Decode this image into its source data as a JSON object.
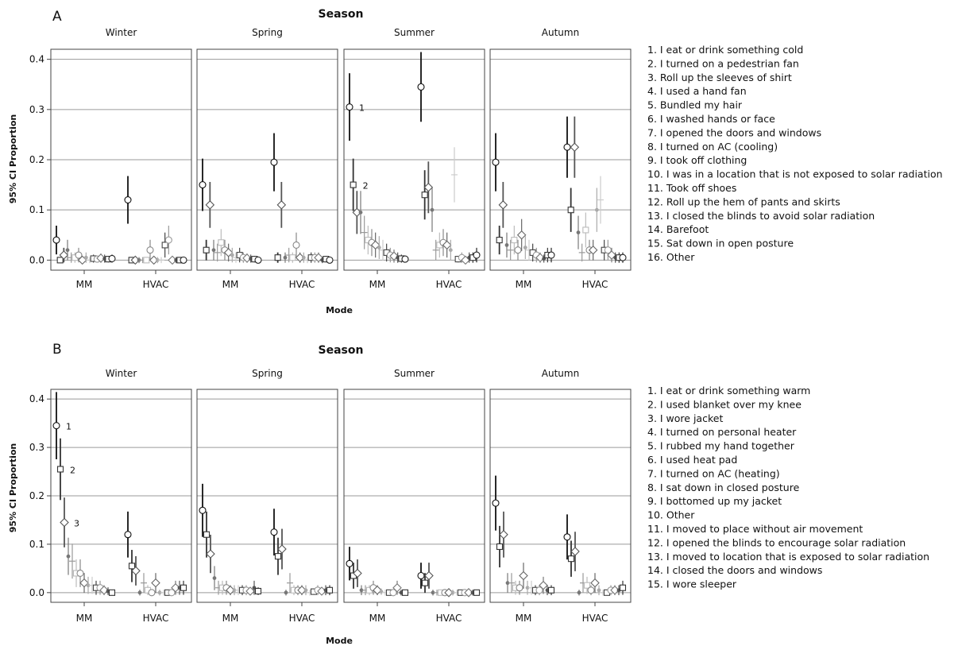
{
  "figure": {
    "panels": [
      {
        "tag": "A",
        "title": "Season",
        "xlabel": "Mode",
        "ylabel": "95% CI Proportion",
        "seasons": [
          "Winter",
          "Spring",
          "Summer",
          "Autumn"
        ],
        "modes": [
          "MM",
          "HVAC"
        ],
        "yticks": [
          "0.0",
          "0.1",
          "0.2",
          "0.3",
          "0.4"
        ],
        "legend": [
          "1. I eat or drink something cold",
          "2. I turned on a pedestrian fan",
          "3. Roll up the sleeves of shirt",
          "4. I used a hand fan",
          "5. Bundled my hair",
          "6. I washed hands or face",
          "7. I opened the doors and windows",
          "8. I turned on AC (cooling)",
          "9. I took off clothing",
          "10. I was in a location that is not exposed to solar radiation",
          "11. Took off shoes",
          "12. Roll up the hem of pants and skirts",
          "13. I closed the blinds to avoid solar radiation",
          "14. Barefoot",
          "15. Sat down in open posture",
          "16. Other"
        ],
        "annotations": [
          {
            "text": "1",
            "season": "Summer",
            "mode": "MM",
            "item": 1
          },
          {
            "text": "2",
            "season": "Summer",
            "mode": "MM",
            "item": 2
          }
        ]
      },
      {
        "tag": "B",
        "title": "Season",
        "xlabel": "Mode",
        "ylabel": "95% CI Proportion",
        "seasons": [
          "Winter",
          "Spring",
          "Summer",
          "Autumn"
        ],
        "modes": [
          "MM",
          "HVAC"
        ],
        "yticks": [
          "0.0",
          "0.1",
          "0.2",
          "0.3",
          "0.4"
        ],
        "legend": [
          "1. I eat or drink something warm",
          "2. I used blanket over my knee",
          "3. I wore jacket",
          "4. I turned on personal heater",
          "5. I rubbed my hand together",
          "6. I used heat pad",
          "7. I turned on AC (heating)",
          "8. I sat down in closed posture",
          "9. I bottomed up my jacket",
          "10. Other",
          "11. I moved to place without air movement",
          "12. I opened the blinds to encourage solar radiation",
          "13. I moved to location that is exposed to solar radiation",
          "14. I closed the doors and windows",
          "15. I wore sleeper"
        ],
        "annotations": [
          {
            "text": "1",
            "season": "Winter",
            "mode": "MM",
            "item": 1
          },
          {
            "text": "2",
            "season": "Winter",
            "mode": "MM",
            "item": 2
          },
          {
            "text": "3",
            "season": "Winter",
            "mode": "MM",
            "item": 3
          }
        ]
      }
    ]
  },
  "chart_data": [
    {
      "type": "scatter",
      "title": "Season",
      "xlabel": "Mode",
      "ylabel": "95% CI Proportion",
      "ylim": [
        -0.02,
        0.42
      ],
      "yticks": [
        0.0,
        0.1,
        0.2,
        0.3,
        0.4
      ],
      "grid": true,
      "legend_position": "right",
      "facets": [
        "Winter",
        "Spring",
        "Summer",
        "Autumn"
      ],
      "categories": [
        "MM",
        "HVAC"
      ],
      "point_values": {
        "Winter": {
          "MM": [
            0.04,
            0.0,
            0.01,
            0.02,
            0.005,
            0.005,
            0.01,
            0.0,
            0.005,
            0.0,
            0.003,
            0.002,
            0.004,
            0.003,
            0.002,
            0.003
          ],
          "HVAC": [
            0.12,
            0.0,
            0.0,
            0.0,
            0.0,
            0.0,
            0.02,
            0.0,
            0.0,
            0.0,
            0.03,
            0.04,
            0.0,
            0.0,
            0.0,
            0.0
          ]
        },
        "Spring": {
          "MM": [
            0.15,
            0.02,
            0.11,
            0.02,
            0.015,
            0.035,
            0.02,
            0.015,
            0.01,
            0.005,
            0.01,
            0.005,
            0.004,
            0.003,
            0.002,
            0.0
          ],
          "HVAC": [
            0.195,
            0.005,
            0.11,
            0.005,
            0.01,
            0.005,
            0.03,
            0.005,
            0.005,
            0.0,
            0.005,
            0.005,
            0.005,
            0.0,
            0.002,
            0.0
          ]
        },
        "Summer": {
          "MM": [
            0.305,
            0.15,
            0.095,
            0.095,
            0.055,
            0.04,
            0.035,
            0.03,
            0.025,
            0.02,
            0.015,
            0.01,
            0.008,
            0.005,
            0.003,
            0.002
          ],
          "HVAC": [
            0.345,
            0.13,
            0.145,
            0.1,
            0.02,
            0.03,
            0.035,
            0.03,
            0.02,
            0.17,
            0.002,
            0.005,
            0.0,
            0.005,
            0.005,
            0.01
          ]
        },
        "Autumn": {
          "MM": [
            0.195,
            0.04,
            0.11,
            0.03,
            0.02,
            0.04,
            0.02,
            0.05,
            0.025,
            0.02,
            0.015,
            0.01,
            0.005,
            0.003,
            0.01,
            0.01
          ],
          "HVAC": [
            0.225,
            0.1,
            0.225,
            0.055,
            0.015,
            0.06,
            0.02,
            0.02,
            0.1,
            0.12,
            0.02,
            0.02,
            0.01,
            0.005,
            0.005,
            0.005
          ]
        }
      },
      "series": [
        {
          "name": "1. I eat or drink something cold"
        },
        {
          "name": "2. I turned on a pedestrian fan"
        },
        {
          "name": "3. Roll up the sleeves of shirt"
        },
        {
          "name": "4. I used a hand fan"
        },
        {
          "name": "5. Bundled my hair"
        },
        {
          "name": "6. I washed hands or face"
        },
        {
          "name": "7. I opened the doors and windows"
        },
        {
          "name": "8. I turned on AC (cooling)"
        },
        {
          "name": "9. I took off clothing"
        },
        {
          "name": "10. I was in a location that is not exposed to solar radiation"
        },
        {
          "name": "11. Took off shoes"
        },
        {
          "name": "12. Roll up the hem of pants and skirts"
        },
        {
          "name": "13. I closed the blinds to avoid solar radiation"
        },
        {
          "name": "14. Barefoot"
        },
        {
          "name": "15. Sat down in open posture"
        },
        {
          "name": "16. Other"
        }
      ]
    },
    {
      "type": "scatter",
      "title": "Season",
      "xlabel": "Mode",
      "ylabel": "95% CI Proportion",
      "ylim": [
        -0.02,
        0.42
      ],
      "yticks": [
        0.0,
        0.1,
        0.2,
        0.3,
        0.4
      ],
      "grid": true,
      "legend_position": "right",
      "facets": [
        "Winter",
        "Spring",
        "Summer",
        "Autumn"
      ],
      "categories": [
        "MM",
        "HVAC"
      ],
      "point_values": {
        "Winter": {
          "MM": [
            0.345,
            0.255,
            0.145,
            0.075,
            0.065,
            0.04,
            0.04,
            0.02,
            0.015,
            0.015,
            0.01,
            0.01,
            0.005,
            0.003,
            0.0
          ],
          "HVAC": [
            0.12,
            0.055,
            0.045,
            0.0,
            0.02,
            0.005,
            0.0,
            0.02,
            0.0,
            0.0,
            0.0,
            0.0,
            0.01,
            0.01,
            0.01
          ]
        },
        "Spring": {
          "MM": [
            0.17,
            0.12,
            0.08,
            0.03,
            0.01,
            0.01,
            0.01,
            0.005,
            0.005,
            0.005,
            0.005,
            0.005,
            0.003,
            0.01,
            0.003
          ],
          "HVAC": [
            0.125,
            0.075,
            0.09,
            0.0,
            0.02,
            0.005,
            0.005,
            0.005,
            0.005,
            0.0,
            0.002,
            0.005,
            0.003,
            0.005,
            0.005
          ]
        },
        "Summer": {
          "MM": [
            0.06,
            0.035,
            0.04,
            0.005,
            0.005,
            0.005,
            0.01,
            0.005,
            0.002,
            0.0,
            0.0,
            0.0,
            0.01,
            0.0,
            0.0
          ],
          "HVAC": [
            0.035,
            0.02,
            0.035,
            0.0,
            0.0,
            0.0,
            0.0,
            0.0,
            0.0,
            0.0,
            0.0,
            0.0,
            0.0,
            0.0,
            0.0
          ]
        },
        "Autumn": {
          "MM": [
            0.185,
            0.095,
            0.12,
            0.02,
            0.02,
            0.01,
            0.01,
            0.035,
            0.01,
            0.01,
            0.005,
            0.005,
            0.015,
            0.005,
            0.005
          ],
          "HVAC": [
            0.115,
            0.07,
            0.085,
            0.0,
            0.02,
            0.015,
            0.005,
            0.02,
            0.005,
            0.0,
            0.0,
            0.005,
            0.005,
            0.005,
            0.01
          ]
        }
      },
      "series": [
        {
          "name": "1. I eat or drink something warm"
        },
        {
          "name": "2. I used blanket over my knee"
        },
        {
          "name": "3. I wore jacket"
        },
        {
          "name": "4. I turned on personal heater"
        },
        {
          "name": "5. I rubbed my hand together"
        },
        {
          "name": "6. I used heat pad"
        },
        {
          "name": "7. I turned on AC (heating)"
        },
        {
          "name": "8. I sat down in closed posture"
        },
        {
          "name": "9. I bottomed up my jacket"
        },
        {
          "name": "10. Other"
        },
        {
          "name": "11. I moved to place without air movement"
        },
        {
          "name": "12. I opened the blinds to encourage solar radiation"
        },
        {
          "name": "13. I moved to location that is exposed to solar radiation"
        },
        {
          "name": "14. I closed the doors and windows"
        },
        {
          "name": "15. I wore sleeper"
        }
      ]
    }
  ]
}
